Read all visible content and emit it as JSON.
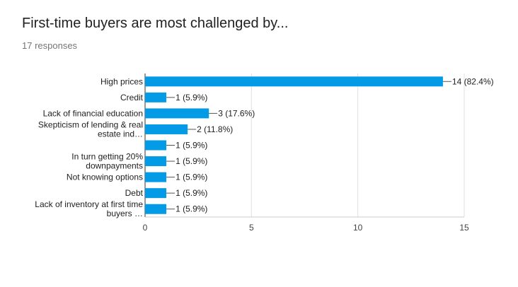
{
  "form": {
    "title": "First-time buyers are most challenged by...",
    "responses": "17 responses"
  },
  "chart_data": {
    "type": "bar",
    "orientation": "horizontal",
    "categories": [
      [
        "High prices"
      ],
      [
        "Credit"
      ],
      [
        "Lack of financial education"
      ],
      [
        "Skepticism of lending & real",
        "estate ind…"
      ],
      [
        ""
      ],
      [
        "In turn getting 20%",
        "downpayments"
      ],
      [
        "Not knowing options"
      ],
      [
        "Debt"
      ],
      [
        "Lack of inventory at first time",
        "buyers …"
      ]
    ],
    "values": [
      14,
      1,
      3,
      2,
      1,
      1,
      1,
      1,
      1
    ],
    "data_labels": [
      "14 (82.4%)",
      "1 (5.9%)",
      "3 (17.6%)",
      "2 (11.8%)",
      "1 (5.9%)",
      "1 (5.9%)",
      "1 (5.9%)",
      "1 (5.9%)",
      "1 (5.9%)"
    ],
    "xlim": [
      0,
      15
    ],
    "xticks": [
      0,
      5,
      10,
      15
    ],
    "grid": true,
    "bar_color": "#039be5"
  }
}
